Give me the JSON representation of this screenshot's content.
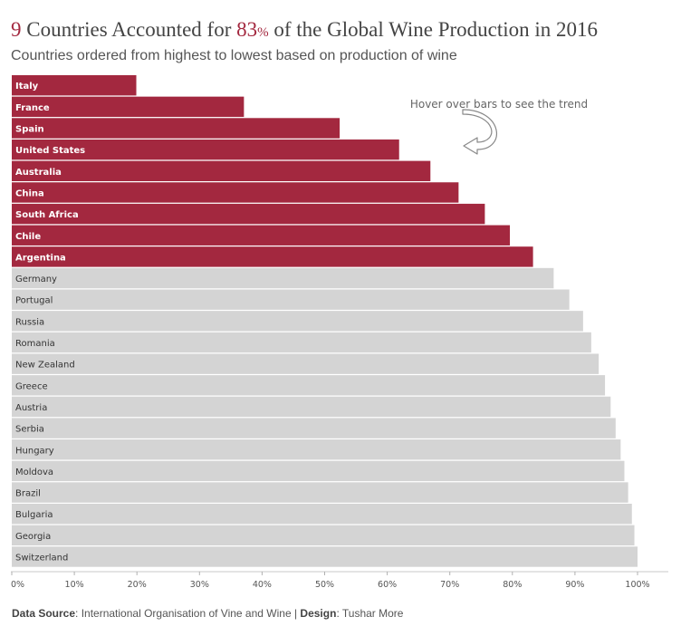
{
  "header": {
    "title_count": "9",
    "title_mid": " Countries Accounted for ",
    "title_pct": "83",
    "title_pct_sign": "%",
    "title_end": " of the Global Wine Production in 2016",
    "subtitle": "Countries ordered from highest to lowest based on production of wine"
  },
  "annotation": {
    "text": "Hover over bars to see the trend",
    "icon": "curved-arrow-icon"
  },
  "footer": {
    "source_label": "Data Source",
    "source_value": ": International Organisation of Vine and Wine | ",
    "design_label": "Design",
    "design_value": ": Tushar More"
  },
  "chart_data": {
    "type": "bar",
    "orientation": "horizontal",
    "measure": "cumulative share of global wine production (%)",
    "categories": [
      "Italy",
      "France",
      "Spain",
      "United States",
      "Australia",
      "China",
      "South Africa",
      "Chile",
      "Argentina",
      "Germany",
      "Portugal",
      "Russia",
      "Romania",
      "New Zealand",
      "Greece",
      "Austria",
      "Serbia",
      "Hungary",
      "Moldova",
      "Brazil",
      "Bulgaria",
      "Georgia",
      "Switzerland"
    ],
    "values": [
      19.9,
      37.1,
      52.4,
      61.9,
      66.9,
      71.4,
      75.6,
      79.6,
      83.3,
      86.6,
      89.1,
      91.3,
      92.6,
      93.8,
      94.8,
      95.7,
      96.5,
      97.3,
      97.9,
      98.5,
      99.1,
      99.5,
      100
    ],
    "highlight_count": 9,
    "xlim": [
      0,
      100
    ],
    "xticks": [
      "0%",
      "10%",
      "20%",
      "30%",
      "40%",
      "50%",
      "60%",
      "70%",
      "80%",
      "90%",
      "100%"
    ],
    "grid": false,
    "colors": {
      "highlight": "#a3283f",
      "other": "#d4d4d4",
      "highlight_label": "#ffffff",
      "other_label": "#333333"
    }
  }
}
